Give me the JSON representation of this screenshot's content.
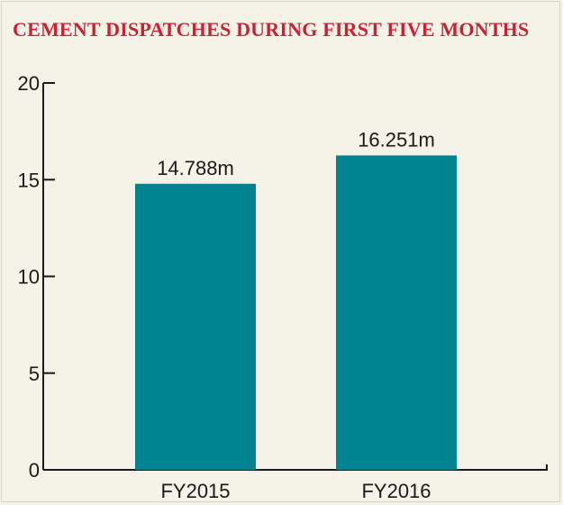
{
  "chart_data": {
    "type": "bar",
    "title": "CEMENT DISPATCHES DURING FIRST FIVE MONTHS",
    "categories": [
      "FY2015",
      "FY2016"
    ],
    "values": [
      14.788,
      16.251
    ],
    "data_labels": [
      "14.788m",
      "16.251m"
    ],
    "xlabel": "",
    "ylabel": "",
    "ylim": [
      0,
      20
    ],
    "yticks": [
      "0",
      "5",
      "10",
      "15",
      "20"
    ],
    "grid": false,
    "legend": "none",
    "colors": {
      "bar": "#008290",
      "title": "#cc2033",
      "axis": "#1a1a1a",
      "background": "#f5f2e8"
    }
  }
}
